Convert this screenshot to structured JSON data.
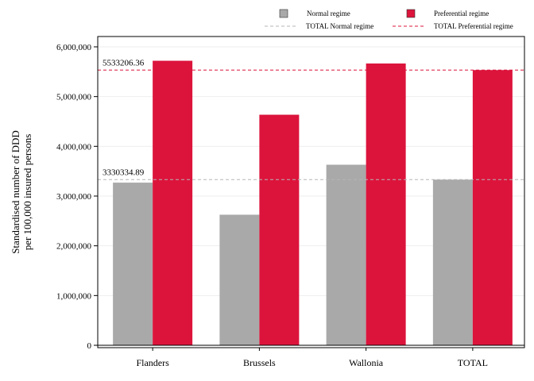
{
  "chart_data": {
    "type": "bar",
    "categories": [
      "Flanders",
      "Brussels",
      "Wallonia",
      "TOTAL"
    ],
    "series": [
      {
        "name": "Normal regime",
        "color": "#a9a9a9",
        "values": [
          3270000,
          2625000,
          3630000,
          3330335
        ]
      },
      {
        "name": "Preferential regime",
        "color": "#dc143c",
        "values": [
          5720000,
          4635000,
          5665000,
          5533206
        ]
      }
    ],
    "reference_lines": [
      {
        "name": "TOTAL Normal regime",
        "value": 3330334.89,
        "label": "3330334.89",
        "color": "#b5b5b5"
      },
      {
        "name": "TOTAL Preferential regime",
        "value": 5533206.36,
        "label": "5533206.36",
        "color": "#dc143c"
      }
    ],
    "ylabel_lines": [
      "Standardised number of DDD",
      "per 100,000 insured persons"
    ],
    "ylim": [
      0,
      6000000
    ],
    "yticks": [
      0,
      1000000,
      2000000,
      3000000,
      4000000,
      5000000,
      6000000
    ],
    "ytick_labels": [
      "0",
      "1,000,000",
      "2,000,000",
      "3,000,000",
      "4,000,000",
      "5,000,000",
      "6,000,000"
    ],
    "grid": true,
    "legend_position": "top"
  }
}
